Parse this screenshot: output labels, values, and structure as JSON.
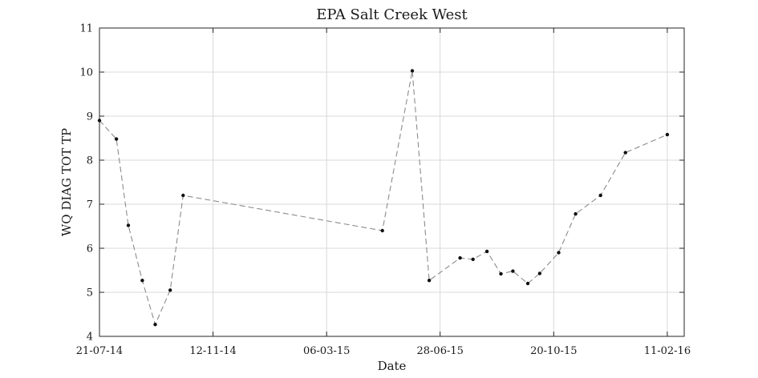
{
  "chart_data": {
    "type": "line",
    "title": "EPA Salt Creek West",
    "xlabel": "Date",
    "ylabel": "WQ DIAG TOT TP",
    "xlim": [
      "2014-07-21",
      "2016-02-28"
    ],
    "ylim": [
      4,
      11
    ],
    "xticks": [
      {
        "date": "2014-07-21",
        "label": "21-07-14"
      },
      {
        "date": "2014-11-12",
        "label": "12-11-14"
      },
      {
        "date": "2015-03-06",
        "label": "06-03-15"
      },
      {
        "date": "2015-06-28",
        "label": "28-06-15"
      },
      {
        "date": "2015-10-20",
        "label": "20-10-15"
      },
      {
        "date": "2016-02-11",
        "label": "11-02-16"
      }
    ],
    "yticks": [
      4,
      5,
      6,
      7,
      8,
      9,
      10,
      11
    ],
    "grid": true,
    "series": [
      {
        "points": [
          {
            "x": "2014-07-21",
            "y": 8.9
          },
          {
            "x": "2014-08-07",
            "y": 8.48
          },
          {
            "x": "2014-08-19",
            "y": 6.52
          },
          {
            "x": "2014-09-02",
            "y": 5.27
          },
          {
            "x": "2014-09-15",
            "y": 4.27
          },
          {
            "x": "2014-09-30",
            "y": 5.05
          },
          {
            "x": "2014-10-13",
            "y": 7.2
          },
          {
            "x": "2015-05-01",
            "y": 6.4
          },
          {
            "x": "2015-05-31",
            "y": 10.03
          },
          {
            "x": "2015-06-17",
            "y": 5.27
          },
          {
            "x": "2015-07-18",
            "y": 5.78
          },
          {
            "x": "2015-07-31",
            "y": 5.75
          },
          {
            "x": "2015-08-14",
            "y": 5.93
          },
          {
            "x": "2015-08-28",
            "y": 5.42
          },
          {
            "x": "2015-09-09",
            "y": 5.48
          },
          {
            "x": "2015-09-24",
            "y": 5.2
          },
          {
            "x": "2015-10-06",
            "y": 5.43
          },
          {
            "x": "2015-10-25",
            "y": 5.9
          },
          {
            "x": "2015-11-11",
            "y": 6.78
          },
          {
            "x": "2015-12-06",
            "y": 7.2
          },
          {
            "x": "2015-12-31",
            "y": 8.17
          },
          {
            "x": "2016-02-11",
            "y": 8.58
          }
        ]
      }
    ]
  }
}
